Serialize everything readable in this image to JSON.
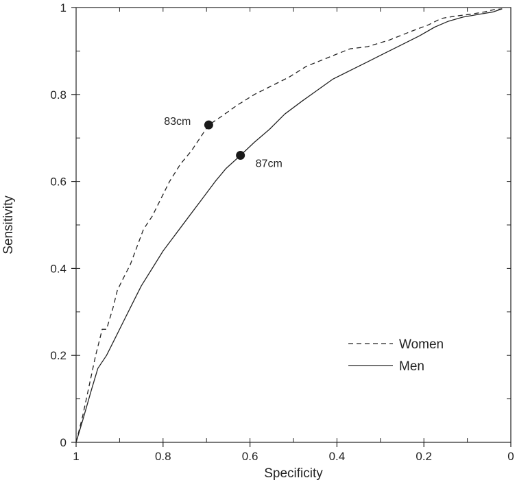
{
  "chart_data": {
    "type": "line",
    "title": "",
    "xlabel": "Specificity",
    "ylabel": "Sensitivity",
    "xlim": [
      1,
      0
    ],
    "ylim": [
      0,
      1
    ],
    "x_reversed": true,
    "xticks": [
      1,
      0.8,
      0.6,
      0.4,
      0.2,
      0
    ],
    "yticks": [
      0,
      0.2,
      0.4,
      0.6,
      0.8,
      1
    ],
    "xtick_labels": [
      "1",
      "0.8",
      "0.6",
      "0.4",
      "0.2",
      "0"
    ],
    "ytick_labels": [
      "0",
      "0.2",
      "0.4",
      "0.6",
      "0.8",
      "1"
    ],
    "grid": false,
    "legend_position": "bottom-right",
    "series": [
      {
        "name": "Women",
        "style": "dashed",
        "color": "#222222",
        "points": [
          [
            1.0,
            0.0
          ],
          [
            0.985,
            0.06
          ],
          [
            0.97,
            0.13
          ],
          [
            0.955,
            0.2
          ],
          [
            0.945,
            0.24
          ],
          [
            0.94,
            0.26
          ],
          [
            0.93,
            0.26
          ],
          [
            0.915,
            0.31
          ],
          [
            0.905,
            0.35
          ],
          [
            0.89,
            0.38
          ],
          [
            0.875,
            0.41
          ],
          [
            0.86,
            0.45
          ],
          [
            0.845,
            0.49
          ],
          [
            0.825,
            0.52
          ],
          [
            0.805,
            0.56
          ],
          [
            0.785,
            0.6
          ],
          [
            0.76,
            0.64
          ],
          [
            0.735,
            0.67
          ],
          [
            0.715,
            0.7
          ],
          [
            0.695,
            0.73
          ],
          [
            0.665,
            0.75
          ],
          [
            0.63,
            0.775
          ],
          [
            0.59,
            0.8
          ],
          [
            0.55,
            0.82
          ],
          [
            0.51,
            0.84
          ],
          [
            0.47,
            0.865
          ],
          [
            0.42,
            0.885
          ],
          [
            0.37,
            0.905
          ],
          [
            0.33,
            0.91
          ],
          [
            0.28,
            0.925
          ],
          [
            0.23,
            0.945
          ],
          [
            0.19,
            0.96
          ],
          [
            0.16,
            0.975
          ],
          [
            0.13,
            0.98
          ],
          [
            0.09,
            0.985
          ],
          [
            0.06,
            0.99
          ],
          [
            0.04,
            0.995
          ],
          [
            0.02,
            0.997
          ]
        ]
      },
      {
        "name": "Men",
        "style": "solid",
        "color": "#222222",
        "points": [
          [
            1.0,
            0.0
          ],
          [
            0.985,
            0.05
          ],
          [
            0.965,
            0.12
          ],
          [
            0.95,
            0.17
          ],
          [
            0.93,
            0.2
          ],
          [
            0.91,
            0.24
          ],
          [
            0.89,
            0.28
          ],
          [
            0.87,
            0.32
          ],
          [
            0.85,
            0.36
          ],
          [
            0.825,
            0.4
          ],
          [
            0.8,
            0.44
          ],
          [
            0.77,
            0.48
          ],
          [
            0.74,
            0.52
          ],
          [
            0.71,
            0.56
          ],
          [
            0.68,
            0.6
          ],
          [
            0.655,
            0.63
          ],
          [
            0.622,
            0.66
          ],
          [
            0.59,
            0.69
          ],
          [
            0.555,
            0.72
          ],
          [
            0.52,
            0.755
          ],
          [
            0.48,
            0.785
          ],
          [
            0.445,
            0.81
          ],
          [
            0.41,
            0.835
          ],
          [
            0.37,
            0.855
          ],
          [
            0.33,
            0.875
          ],
          [
            0.29,
            0.895
          ],
          [
            0.25,
            0.915
          ],
          [
            0.21,
            0.935
          ],
          [
            0.175,
            0.955
          ],
          [
            0.145,
            0.968
          ],
          [
            0.11,
            0.978
          ],
          [
            0.07,
            0.985
          ],
          [
            0.04,
            0.99
          ],
          [
            0.02,
            0.997
          ]
        ]
      }
    ],
    "annotations": [
      {
        "series": "Women",
        "x": 0.695,
        "y": 0.73,
        "label": "83cm",
        "label_side": "left"
      },
      {
        "series": "Men",
        "x": 0.622,
        "y": 0.66,
        "label": "87cm",
        "label_side": "right"
      }
    ]
  }
}
